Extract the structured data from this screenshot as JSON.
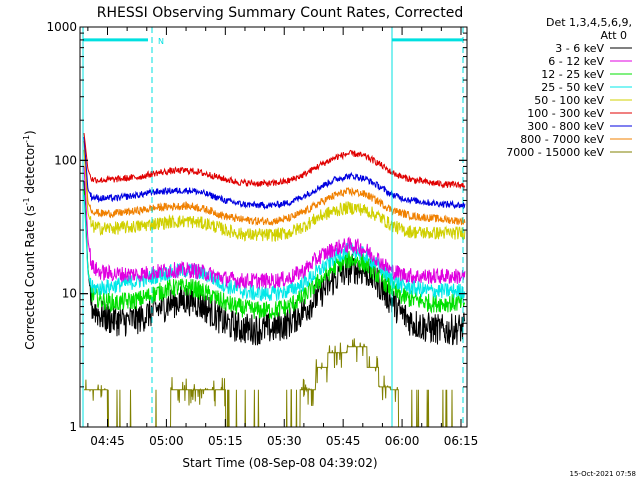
{
  "chart_data": {
    "type": "line",
    "title": "RHESSI Observing Summary Count Rates, Corrected",
    "xlabel": "Start Time (08-Sep-08 04:39:02)",
    "ylabel_main": "Corrected Count Rate (s",
    "ylabel_sup1": "-1",
    "ylabel_mid": " detector",
    "ylabel_sup2": "-1",
    "ylabel_end": ")",
    "ylabel": "Corrected Count Rate (s-1 detector-1)",
    "y_scale": "log",
    "ylim": [
      1,
      1000
    ],
    "xlim_minutes": [
      -1.03,
      97.5
    ],
    "y_ticks": [
      {
        "value": 1,
        "label": "1"
      },
      {
        "value": 10,
        "label": "10"
      },
      {
        "value": 100,
        "label": "100"
      },
      {
        "value": 1000,
        "label": "1000"
      }
    ],
    "x_ticks": [
      {
        "minutes": 5.97,
        "label": "04:45"
      },
      {
        "minutes": 20.97,
        "label": "05:00"
      },
      {
        "minutes": 35.97,
        "label": "05:15"
      },
      {
        "minutes": 50.97,
        "label": "05:30"
      },
      {
        "minutes": 65.97,
        "label": "05:45"
      },
      {
        "minutes": 80.97,
        "label": "06:00"
      },
      {
        "minutes": 95.97,
        "label": "06:15"
      }
    ],
    "legend_header": [
      "Det 1,3,4,5,6,9,",
      "Att 0"
    ],
    "legend_position": "right",
    "series": [
      {
        "name": "3 - 6 keV",
        "color": "#000000",
        "points": [
          [
            0,
            70
          ],
          [
            1,
            15
          ],
          [
            2,
            8
          ],
          [
            4,
            7
          ],
          [
            6,
            6.5
          ],
          [
            10,
            6.2
          ],
          [
            14,
            6.5
          ],
          [
            18,
            7.5
          ],
          [
            22,
            8.5
          ],
          [
            26,
            9
          ],
          [
            28,
            8.8
          ],
          [
            32,
            7.5
          ],
          [
            36,
            6
          ],
          [
            40,
            5.5
          ],
          [
            44,
            5.4
          ],
          [
            48,
            5.5
          ],
          [
            52,
            6
          ],
          [
            56,
            7.5
          ],
          [
            60,
            10
          ],
          [
            64,
            13
          ],
          [
            67,
            15
          ],
          [
            69,
            15.5
          ],
          [
            72,
            14.5
          ],
          [
            75,
            12
          ],
          [
            78,
            9
          ],
          [
            81,
            7
          ],
          [
            84,
            6
          ],
          [
            88,
            5.5
          ],
          [
            92,
            5.3
          ],
          [
            96,
            5.5
          ]
        ],
        "noise": 0.12
      },
      {
        "name": "6 - 12 keV",
        "color": "#e000e0",
        "points": [
          [
            0,
            90
          ],
          [
            1,
            25
          ],
          [
            2,
            16
          ],
          [
            4,
            14.5
          ],
          [
            8,
            14
          ],
          [
            14,
            14
          ],
          [
            18,
            14.5
          ],
          [
            22,
            15
          ],
          [
            26,
            15
          ],
          [
            28,
            15
          ],
          [
            32,
            14
          ],
          [
            36,
            13
          ],
          [
            40,
            12.5
          ],
          [
            44,
            12.5
          ],
          [
            48,
            12.5
          ],
          [
            52,
            13
          ],
          [
            56,
            15
          ],
          [
            60,
            19
          ],
          [
            64,
            22
          ],
          [
            67,
            23
          ],
          [
            69,
            23
          ],
          [
            72,
            21
          ],
          [
            75,
            18
          ],
          [
            78,
            15
          ],
          [
            81,
            14
          ],
          [
            84,
            13.5
          ],
          [
            88,
            13.5
          ],
          [
            92,
            13.5
          ],
          [
            96,
            13.5
          ]
        ],
        "noise": 0.06
      },
      {
        "name": "12 - 25 keV",
        "color": "#00e000",
        "points": [
          [
            0,
            60
          ],
          [
            1,
            15
          ],
          [
            2,
            10
          ],
          [
            4,
            9
          ],
          [
            8,
            8.5
          ],
          [
            14,
            9
          ],
          [
            18,
            10
          ],
          [
            22,
            11
          ],
          [
            26,
            11.2
          ],
          [
            28,
            11
          ],
          [
            32,
            9.8
          ],
          [
            36,
            8.5
          ],
          [
            40,
            7.8
          ],
          [
            44,
            7.5
          ],
          [
            48,
            7.5
          ],
          [
            52,
            8
          ],
          [
            56,
            9.5
          ],
          [
            60,
            12.5
          ],
          [
            64,
            16
          ],
          [
            67,
            18
          ],
          [
            69,
            18
          ],
          [
            72,
            16.5
          ],
          [
            75,
            13.5
          ],
          [
            78,
            11
          ],
          [
            81,
            9.5
          ],
          [
            84,
            9
          ],
          [
            88,
            8.5
          ],
          [
            92,
            8.5
          ],
          [
            96,
            8.5
          ]
        ],
        "noise": 0.07
      },
      {
        "name": "25 - 50 keV",
        "color": "#00e8e8",
        "points": [
          [
            0,
            55
          ],
          [
            1,
            14
          ],
          [
            2,
            11
          ],
          [
            4,
            11
          ],
          [
            8,
            11.5
          ],
          [
            14,
            12.5
          ],
          [
            18,
            13.5
          ],
          [
            22,
            14.5
          ],
          [
            26,
            15
          ],
          [
            28,
            14.8
          ],
          [
            32,
            13.5
          ],
          [
            36,
            11.5
          ],
          [
            40,
            10.5
          ],
          [
            44,
            10
          ],
          [
            48,
            10
          ],
          [
            52,
            10.5
          ],
          [
            56,
            12
          ],
          [
            60,
            15
          ],
          [
            64,
            19
          ],
          [
            67,
            21
          ],
          [
            69,
            21
          ],
          [
            72,
            19
          ],
          [
            75,
            16
          ],
          [
            78,
            13
          ],
          [
            81,
            11.5
          ],
          [
            84,
            11
          ],
          [
            88,
            10.5
          ],
          [
            92,
            10.5
          ],
          [
            96,
            10.5
          ]
        ],
        "noise": 0.06
      },
      {
        "name": "50 - 100 keV",
        "color": "#d0d000",
        "points": [
          [
            0,
            120
          ],
          [
            1,
            40
          ],
          [
            2,
            32
          ],
          [
            4,
            31
          ],
          [
            8,
            31
          ],
          [
            14,
            32
          ],
          [
            18,
            33.5
          ],
          [
            22,
            34.5
          ],
          [
            26,
            35
          ],
          [
            28,
            34.5
          ],
          [
            32,
            33
          ],
          [
            36,
            30
          ],
          [
            40,
            28
          ],
          [
            44,
            27.5
          ],
          [
            48,
            27.5
          ],
          [
            52,
            28.5
          ],
          [
            56,
            32
          ],
          [
            60,
            38
          ],
          [
            64,
            42
          ],
          [
            67,
            44
          ],
          [
            69,
            44
          ],
          [
            72,
            42
          ],
          [
            75,
            38
          ],
          [
            78,
            33
          ],
          [
            81,
            30
          ],
          [
            84,
            29
          ],
          [
            88,
            28.5
          ],
          [
            92,
            28.5
          ],
          [
            96,
            28.5
          ]
        ],
        "noise": 0.05
      },
      {
        "name": "100 - 300 keV",
        "color": "#e00000",
        "points": [
          [
            0,
            160
          ],
          [
            1,
            85
          ],
          [
            2,
            72
          ],
          [
            4,
            71
          ],
          [
            8,
            72
          ],
          [
            14,
            75
          ],
          [
            18,
            80
          ],
          [
            22,
            83
          ],
          [
            26,
            84
          ],
          [
            28,
            83
          ],
          [
            32,
            78
          ],
          [
            36,
            72
          ],
          [
            40,
            68
          ],
          [
            44,
            67
          ],
          [
            48,
            67
          ],
          [
            52,
            70
          ],
          [
            56,
            78
          ],
          [
            60,
            92
          ],
          [
            64,
            105
          ],
          [
            67,
            112
          ],
          [
            69,
            112
          ],
          [
            72,
            106
          ],
          [
            75,
            95
          ],
          [
            78,
            82
          ],
          [
            81,
            75
          ],
          [
            84,
            71
          ],
          [
            88,
            68
          ],
          [
            92,
            66
          ],
          [
            96,
            65
          ]
        ],
        "noise": 0.025
      },
      {
        "name": "300 - 800 keV",
        "color": "#0000e0",
        "points": [
          [
            0,
            150
          ],
          [
            1,
            60
          ],
          [
            2,
            53
          ],
          [
            4,
            52
          ],
          [
            8,
            52
          ],
          [
            14,
            55
          ],
          [
            18,
            58
          ],
          [
            22,
            59
          ],
          [
            26,
            59.5
          ],
          [
            28,
            59
          ],
          [
            32,
            55
          ],
          [
            36,
            50
          ],
          [
            40,
            47
          ],
          [
            44,
            46
          ],
          [
            48,
            46
          ],
          [
            52,
            48
          ],
          [
            56,
            54
          ],
          [
            60,
            63
          ],
          [
            64,
            72
          ],
          [
            67,
            76
          ],
          [
            69,
            76
          ],
          [
            72,
            72
          ],
          [
            75,
            64
          ],
          [
            78,
            56
          ],
          [
            81,
            52
          ],
          [
            84,
            50
          ],
          [
            88,
            48
          ],
          [
            92,
            47
          ],
          [
            96,
            46
          ]
        ],
        "noise": 0.025
      },
      {
        "name": "800 - 7000 keV",
        "color": "#f08000",
        "points": [
          [
            0,
            140
          ],
          [
            1,
            48
          ],
          [
            2,
            42
          ],
          [
            4,
            40
          ],
          [
            8,
            40
          ],
          [
            14,
            42
          ],
          [
            18,
            44
          ],
          [
            22,
            45
          ],
          [
            26,
            45.5
          ],
          [
            28,
            45
          ],
          [
            32,
            42
          ],
          [
            36,
            38
          ],
          [
            40,
            36
          ],
          [
            44,
            35
          ],
          [
            48,
            35
          ],
          [
            52,
            36.5
          ],
          [
            56,
            41
          ],
          [
            60,
            48
          ],
          [
            64,
            55
          ],
          [
            67,
            58
          ],
          [
            69,
            58
          ],
          [
            72,
            55
          ],
          [
            75,
            49
          ],
          [
            78,
            43
          ],
          [
            81,
            40
          ],
          [
            84,
            38
          ],
          [
            88,
            37
          ],
          [
            92,
            36
          ],
          [
            96,
            35
          ]
        ],
        "noise": 0.03
      },
      {
        "name": "7000 - 15000 keV",
        "color": "#808000",
        "points": [],
        "noise": 0
      }
    ],
    "annotation_bars": [
      {
        "label": "N",
        "color": "#00e0e0",
        "y_value": 800
      }
    ],
    "footer_timestamp": "15-Oct-2021 07:58"
  }
}
